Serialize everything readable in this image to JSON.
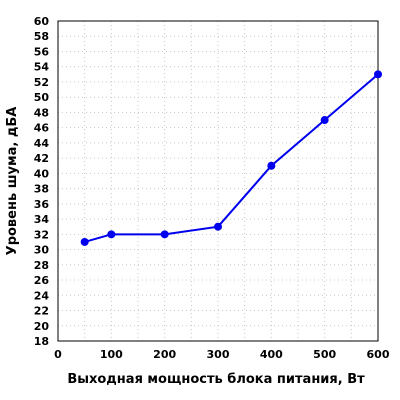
{
  "chart_data": {
    "type": "line",
    "x": [
      50,
      100,
      200,
      300,
      400,
      500,
      600
    ],
    "series": [
      {
        "values": [
          31,
          32,
          32,
          33,
          41,
          47,
          53
        ],
        "color": "#0000ee"
      }
    ],
    "xlabel": "Выходная мощность блока питания, Вт",
    "ylabel": "Уровень шума, дБА",
    "xlim": [
      0,
      600
    ],
    "ylim": [
      18,
      60
    ],
    "xticks": [
      0,
      100,
      200,
      300,
      400,
      500,
      600
    ],
    "yticks": [
      18,
      20,
      22,
      24,
      26,
      28,
      30,
      32,
      34,
      36,
      38,
      40,
      42,
      44,
      46,
      48,
      50,
      52,
      54,
      56,
      58,
      60
    ],
    "grid": true,
    "legend": "none"
  }
}
